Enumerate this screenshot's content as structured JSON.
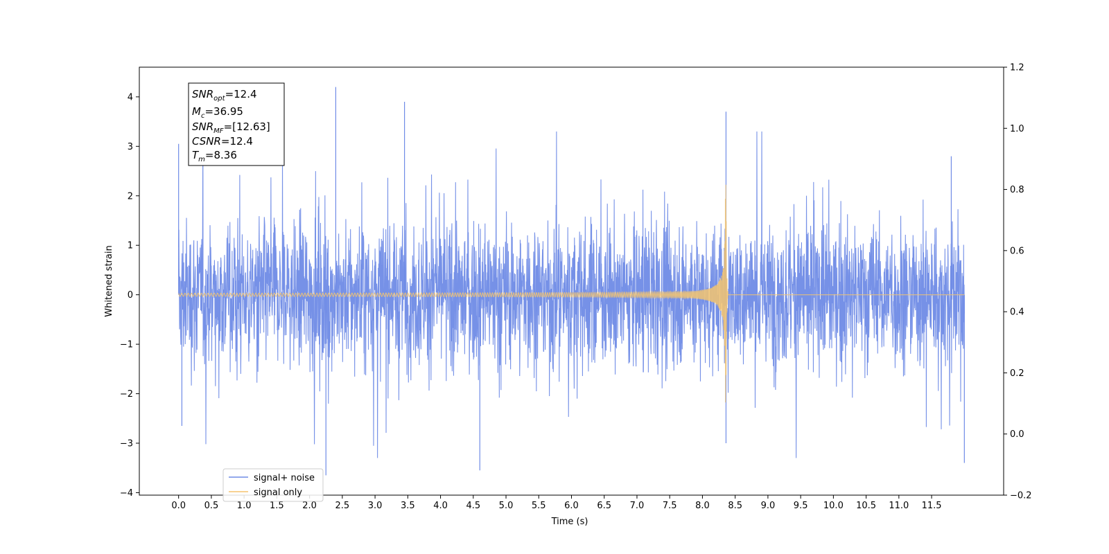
{
  "chart_data": {
    "type": "line",
    "xlabel": "Time (s)",
    "ylabel": "Whitened strain",
    "xlim": [
      -0.6,
      12.6
    ],
    "ylim": [
      -4.05,
      4.6
    ],
    "y2lim": [
      -0.2,
      1.2
    ],
    "grid": false,
    "x_ticks": [
      "0.0",
      "0.5",
      "1.0",
      "1.5",
      "2.0",
      "2.5",
      "3.0",
      "3.5",
      "4.0",
      "4.5",
      "5.0",
      "5.5",
      "6.0",
      "6.5",
      "7.0",
      "7.5",
      "8.0",
      "8.5",
      "9.0",
      "9.5",
      "10.0",
      "10.5",
      "11.0",
      "11.5"
    ],
    "y_ticks": [
      "4",
      "3",
      "2",
      "1",
      "0",
      "−1",
      "−2",
      "−3",
      "−4"
    ],
    "y2_ticks": [
      "1.2",
      "1.0",
      "0.8",
      "0.6",
      "0.4",
      "0.2",
      "0.0",
      "−0.2"
    ],
    "annotation": {
      "snr_opt": {
        "base": "SNR",
        "sub": "opt",
        "value": "=12.4"
      },
      "mc": {
        "base": "M",
        "sub": "c",
        "value": "=36.95"
      },
      "snr_mf": {
        "base": "SNR",
        "sub": "MF",
        "value": "=[12.63]"
      },
      "csnr": {
        "base": "CSNR",
        "value": "=12.4"
      },
      "tm": {
        "base": "T",
        "sub": "m",
        "value": "=8.36"
      }
    },
    "series": [
      {
        "name": "signal+ noise",
        "color": "#6f8be6",
        "x_range": [
          0.0,
          12.0
        ],
        "noise_band": [
          -1.6,
          1.6
        ],
        "extreme_peaks": [
          [
            0.0,
            3.05
          ],
          [
            2.4,
            4.2
          ],
          [
            3.45,
            3.9
          ],
          [
            4.6,
            -3.55
          ],
          [
            2.25,
            -3.65
          ],
          [
            8.36,
            3.7
          ],
          [
            8.36,
            -3.0
          ],
          [
            12.0,
            -3.4
          ],
          [
            0.05,
            -2.65
          ],
          [
            11.8,
            2.8
          ]
        ]
      },
      {
        "name": "signal only",
        "color": "#f5c46e",
        "x_range": [
          0.0,
          12.0
        ],
        "merger_time": 8.36,
        "peak_amplitude": 2.45
      }
    ],
    "legend_position": "lower-left"
  }
}
